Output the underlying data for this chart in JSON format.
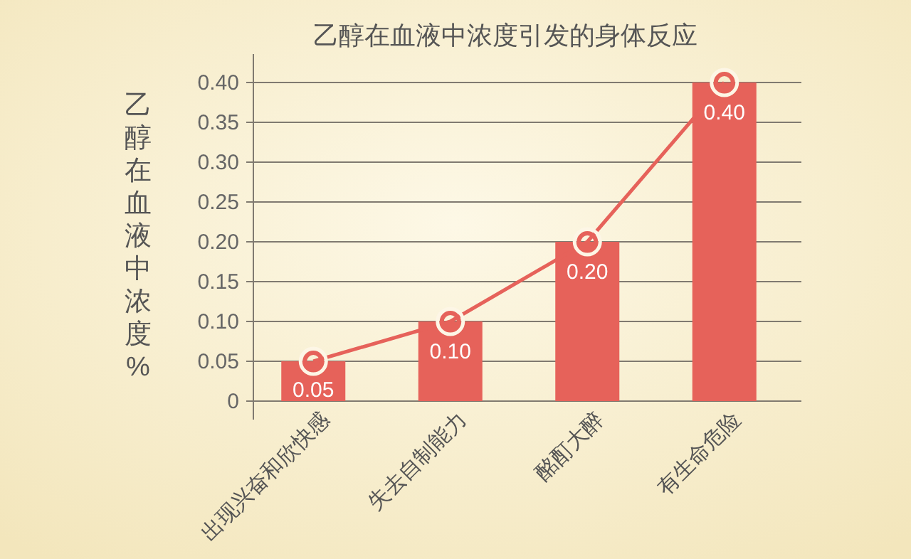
{
  "chart_data": {
    "type": "bar",
    "title": "乙醇在血液中浓度引发的身体反应",
    "ylabel": "乙醇在血液中浓度%",
    "categories": [
      "出现兴奋和欣快感",
      "失去自制能力",
      "酩酊大醉",
      "有生命危险"
    ],
    "series": [
      {
        "color": "#e6625a",
        "values": [
          0.05,
          0.1,
          0.2,
          0.4
        ],
        "value_labels": [
          "0.05",
          "0.10",
          "0.20",
          "0.40"
        ]
      },
      {
        "type": "line",
        "color": "#e6625a",
        "values": [
          0.05,
          0.1,
          0.2,
          0.4
        ],
        "marker": "circle"
      }
    ],
    "ylim": [
      0,
      0.4
    ],
    "yticks": [
      0,
      0.05,
      {
        "value": 0.1,
        "label": "0.10"
      },
      0.15,
      {
        "value": 0.2,
        "label": "0.20"
      },
      0.25,
      {
        "value": 0.3,
        "label": "0.30"
      },
      0.35,
      {
        "value": 0.4,
        "label": "0.40"
      }
    ],
    "grid": "y"
  }
}
